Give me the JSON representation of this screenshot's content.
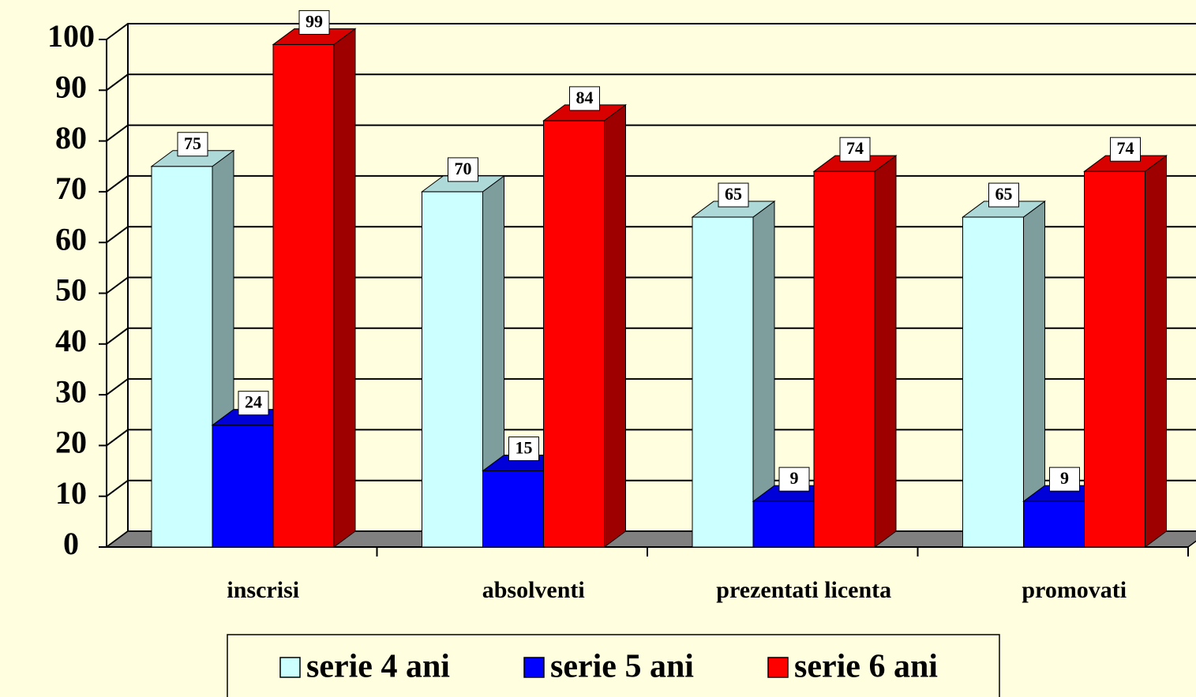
{
  "chart_data": {
    "type": "bar3d",
    "categories": [
      "inscrisi",
      "absolventi",
      "prezentati licenta",
      "promovati"
    ],
    "series": [
      {
        "name": "serie 4 ani",
        "color": "#ccffff",
        "values": [
          75,
          70,
          65,
          65
        ]
      },
      {
        "name": "serie 5 ani",
        "color": "#0000ff",
        "values": [
          24,
          15,
          9,
          9
        ]
      },
      {
        "name": "serie 6 ani",
        "color": "#ff0000",
        "values": [
          99,
          84,
          74,
          74
        ]
      }
    ],
    "ylim": [
      0,
      100
    ],
    "yticks": [
      0,
      10,
      20,
      30,
      40,
      50,
      60,
      70,
      80,
      90,
      100
    ],
    "grid": true,
    "legend": "bottom"
  }
}
